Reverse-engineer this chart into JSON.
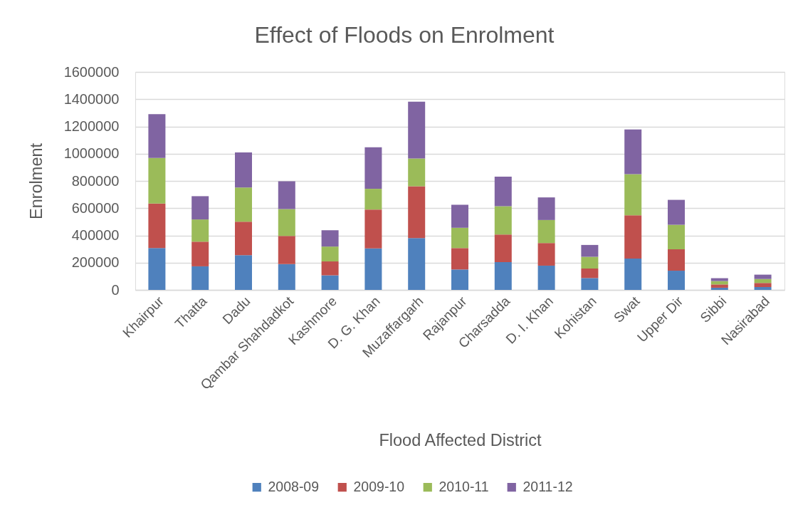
{
  "chart_data": {
    "type": "bar",
    "title": "Effect of Floods on Enrolment",
    "xlabel": "Flood Affected District",
    "ylabel": "Enrolment",
    "categories": [
      "Khairpur",
      "Thatta",
      "Dadu",
      "Qambar Shahdadkot",
      "Kashmore",
      "D. G. Khan",
      "Muzaffargarh",
      "Rajanpur",
      "Charsadda",
      "D. I. Khan",
      "Kohistan",
      "Swat",
      "Upper Dir",
      "Sibbi",
      "Nasirabad"
    ],
    "series": [
      {
        "name": "2008-09",
        "color": "#4f81bd",
        "values": [
          307000,
          173000,
          255000,
          190000,
          107000,
          304000,
          381000,
          150000,
          204000,
          178000,
          87000,
          230000,
          141000,
          16000,
          21000
        ]
      },
      {
        "name": "2009-10",
        "color": "#c0504d",
        "values": [
          327000,
          181000,
          246000,
          206000,
          102000,
          286000,
          380000,
          157000,
          203000,
          166000,
          70000,
          318000,
          157000,
          24000,
          30000
        ]
      },
      {
        "name": "2010-11",
        "color": "#9bbb59",
        "values": [
          335000,
          163000,
          251000,
          197000,
          109000,
          152000,
          204000,
          149000,
          208000,
          169000,
          86000,
          302000,
          180000,
          25000,
          29000
        ]
      },
      {
        "name": "2011-12",
        "color": "#8064a2",
        "values": [
          321000,
          171000,
          257000,
          205000,
          120000,
          305000,
          417000,
          169000,
          217000,
          166000,
          87000,
          328000,
          183000,
          21000,
          32000
        ]
      }
    ],
    "stacked": true,
    "ylim": [
      0,
      1600000
    ],
    "yticks": [
      0,
      200000,
      400000,
      600000,
      800000,
      1000000,
      1200000,
      1400000,
      1600000
    ],
    "grid": "y",
    "legend": "bottom"
  }
}
